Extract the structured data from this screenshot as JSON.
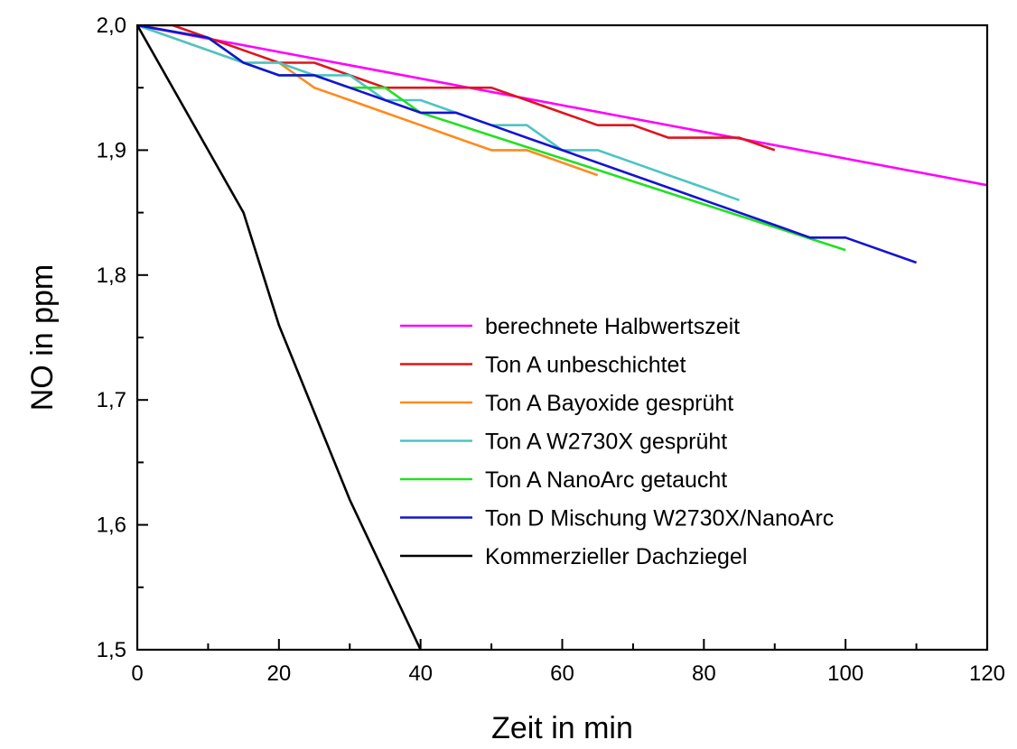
{
  "chart_data": {
    "type": "line",
    "xlabel": "Zeit in min",
    "ylabel": "NO in ppm",
    "xlim": [
      0,
      120
    ],
    "ylim": [
      1.5,
      2.0
    ],
    "x_ticks": [
      0,
      20,
      40,
      60,
      80,
      100,
      120
    ],
    "x_tick_labels": [
      "0",
      "20",
      "40",
      "60",
      "80",
      "100",
      "120"
    ],
    "y_ticks": [
      1.5,
      1.6,
      1.7,
      1.8,
      1.9,
      2.0
    ],
    "y_tick_labels": [
      "1,5",
      "1,6",
      "1,7",
      "1,8",
      "1,9",
      "2,0"
    ],
    "grid": false,
    "legend_position": "center-right",
    "series": [
      {
        "name": "berechnete Halbwertszeit",
        "color": "#ff00ff",
        "points": [
          [
            0,
            2.0
          ],
          [
            120,
            1.872
          ]
        ]
      },
      {
        "name": "Ton A unbeschichtet",
        "color": "#e0141c",
        "points": [
          [
            0,
            2.0
          ],
          [
            5,
            2.0
          ],
          [
            10,
            1.99
          ],
          [
            15,
            1.98
          ],
          [
            20,
            1.97
          ],
          [
            25,
            1.97
          ],
          [
            30,
            1.96
          ],
          [
            35,
            1.95
          ],
          [
            40,
            1.95
          ],
          [
            45,
            1.95
          ],
          [
            50,
            1.95
          ],
          [
            55,
            1.94
          ],
          [
            60,
            1.93
          ],
          [
            65,
            1.92
          ],
          [
            70,
            1.92
          ],
          [
            75,
            1.91
          ],
          [
            80,
            1.91
          ],
          [
            85,
            1.91
          ],
          [
            90,
            1.9
          ]
        ]
      },
      {
        "name": "Ton A Bayoxide gesprüht",
        "color": "#ff8a1c",
        "points": [
          [
            0,
            2.0
          ],
          [
            10,
            1.98
          ],
          [
            15,
            1.97
          ],
          [
            20,
            1.97
          ],
          [
            25,
            1.95
          ],
          [
            30,
            1.94
          ],
          [
            35,
            1.93
          ],
          [
            40,
            1.92
          ],
          [
            45,
            1.91
          ],
          [
            50,
            1.9
          ],
          [
            55,
            1.9
          ],
          [
            60,
            1.89
          ],
          [
            65,
            1.88
          ]
        ]
      },
      {
        "name": "Ton A W2730X gesprüht",
        "color": "#4cc4c4",
        "points": [
          [
            0,
            2.0
          ],
          [
            10,
            1.98
          ],
          [
            15,
            1.97
          ],
          [
            20,
            1.97
          ],
          [
            25,
            1.96
          ],
          [
            30,
            1.96
          ],
          [
            35,
            1.94
          ],
          [
            40,
            1.94
          ],
          [
            45,
            1.93
          ],
          [
            50,
            1.92
          ],
          [
            55,
            1.92
          ],
          [
            60,
            1.9
          ],
          [
            65,
            1.9
          ],
          [
            70,
            1.89
          ],
          [
            75,
            1.88
          ],
          [
            80,
            1.87
          ],
          [
            85,
            1.86
          ]
        ]
      },
      {
        "name": "Ton A NanoArc getaucht",
        "color": "#22e022",
        "points": [
          [
            0,
            2.0
          ],
          [
            10,
            1.99
          ],
          [
            15,
            1.97
          ],
          [
            20,
            1.96
          ],
          [
            25,
            1.96
          ],
          [
            30,
            1.95
          ],
          [
            35,
            1.95
          ],
          [
            40,
            1.93
          ],
          [
            100,
            1.82
          ]
        ]
      },
      {
        "name": "Ton D Mischung W2730X/NanoArc",
        "color": "#1414d2",
        "points": [
          [
            0,
            2.0
          ],
          [
            10,
            1.99
          ],
          [
            15,
            1.97
          ],
          [
            20,
            1.96
          ],
          [
            25,
            1.96
          ],
          [
            30,
            1.95
          ],
          [
            35,
            1.94
          ],
          [
            40,
            1.93
          ],
          [
            45,
            1.93
          ],
          [
            50,
            1.92
          ],
          [
            55,
            1.91
          ],
          [
            60,
            1.9
          ],
          [
            70,
            1.88
          ],
          [
            80,
            1.86
          ],
          [
            90,
            1.84
          ],
          [
            95,
            1.83
          ],
          [
            100,
            1.83
          ],
          [
            110,
            1.81
          ]
        ]
      },
      {
        "name": "Kommerzieller Dachziegel",
        "color": "#000000",
        "points": [
          [
            0,
            2.0
          ],
          [
            10,
            1.9
          ],
          [
            15,
            1.85
          ],
          [
            20,
            1.76
          ],
          [
            25,
            1.69
          ],
          [
            30,
            1.62
          ],
          [
            35,
            1.56
          ],
          [
            40,
            1.5
          ]
        ]
      }
    ]
  }
}
